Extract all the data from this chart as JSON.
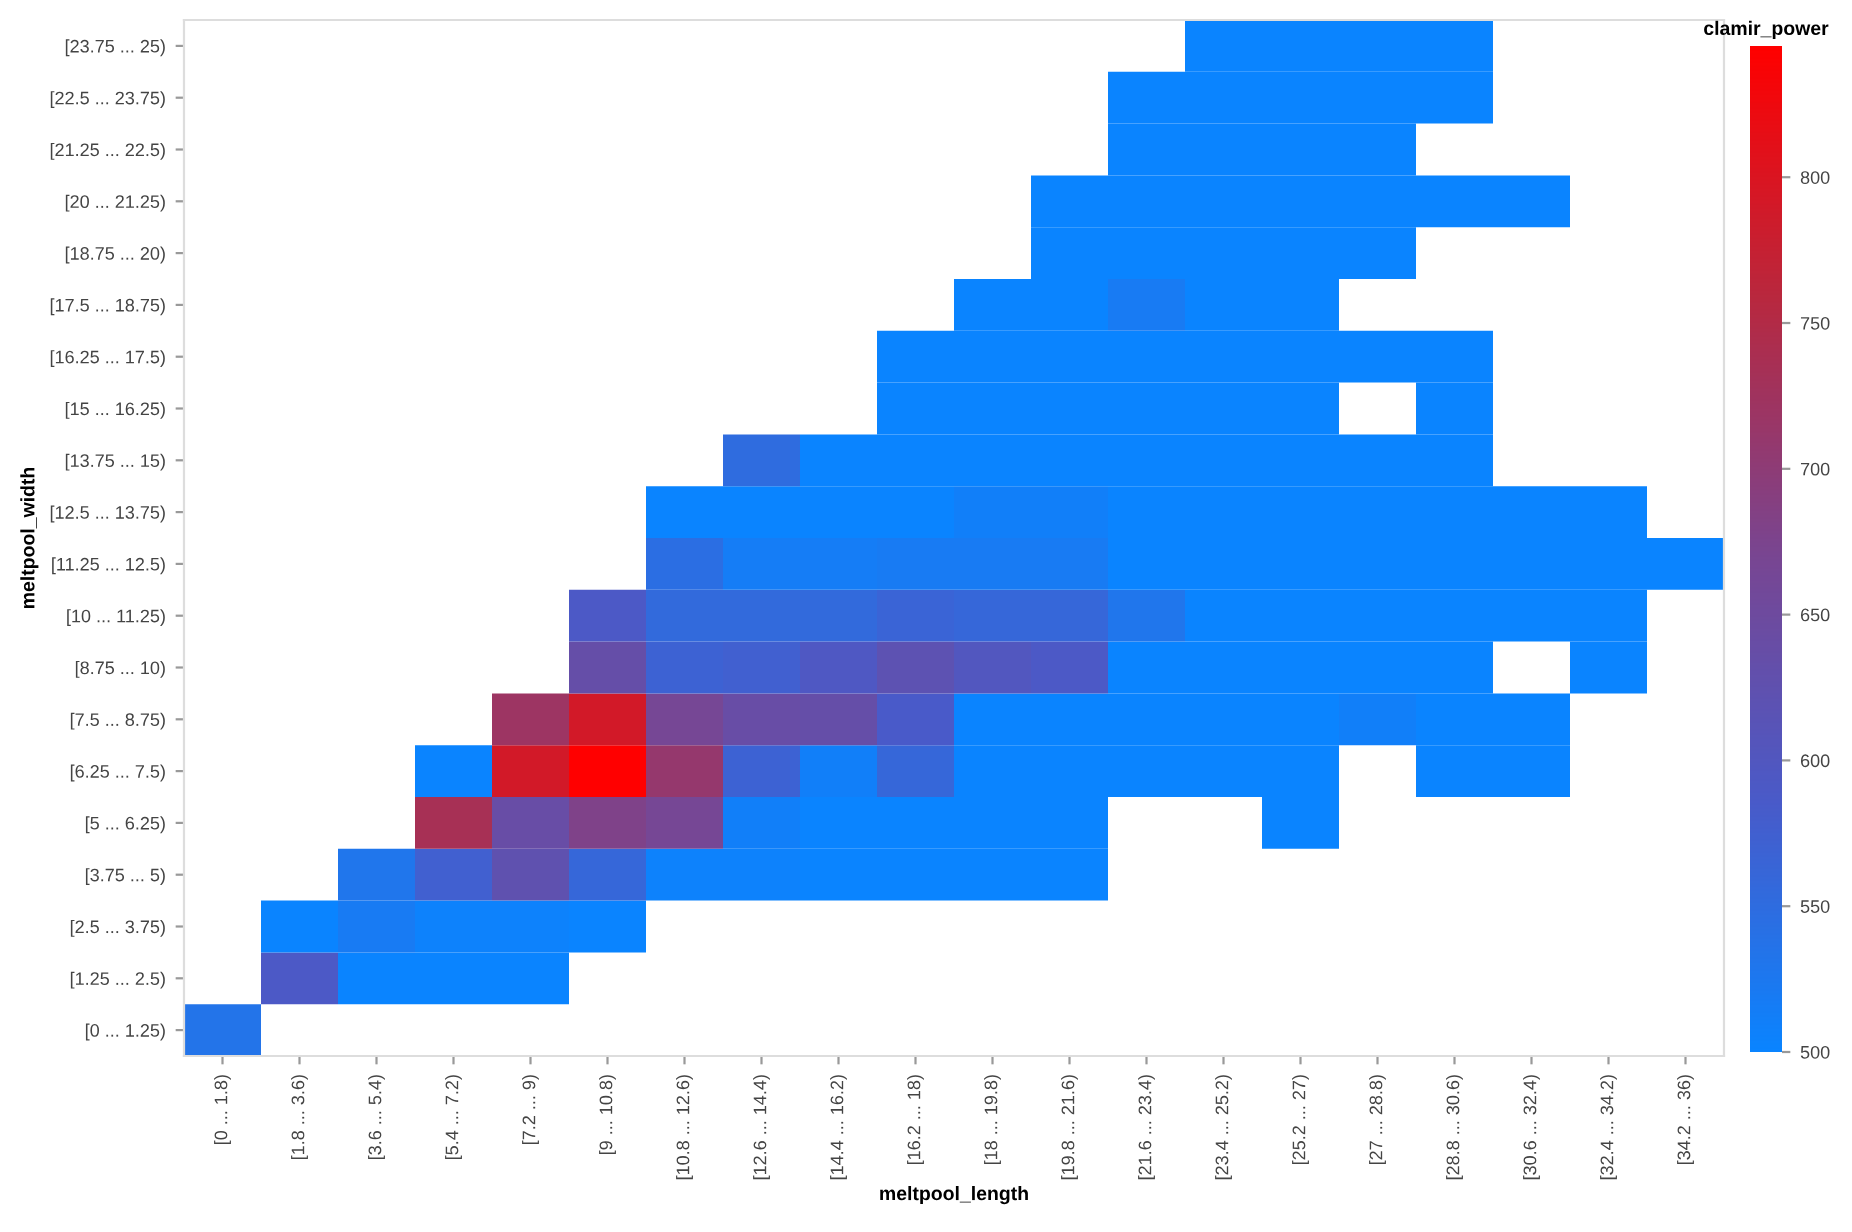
{
  "chart_data": {
    "type": "heatmap",
    "xlabel": "meltpool_length",
    "ylabel": "meltpool_width",
    "clabel": "clamir_power",
    "categories": [
      "[0 ... 1.8)",
      "[1.8 ... 3.6)",
      "[3.6 ... 5.4)",
      "[5.4 ... 7.2)",
      "[7.2 ... 9)",
      "[9 ... 10.8)",
      "[10.8 ... 12.6)",
      "[12.6 ... 14.4)",
      "[14.4 ... 16.2)",
      "[16.2 ... 18)",
      "[18 ... 19.8)",
      "[19.8 ... 21.6)",
      "[21.6 ... 23.4)",
      "[23.4 ... 25.2)",
      "[25.2 ... 27)",
      "[27 ... 28.8)",
      "[28.8 ... 30.6)",
      "[30.6 ... 32.4)",
      "[32.4 ... 34.2)",
      "[34.2 ... 36)"
    ],
    "y_categories": [
      "[23.75 ... 25)",
      "[22.5 ... 23.75)",
      "[21.25 ... 22.5)",
      "[20 ... 21.25)",
      "[18.75 ... 20)",
      "[17.5 ... 18.75)",
      "[16.25 ... 17.5)",
      "[15 ... 16.25)",
      "[13.75 ... 15)",
      "[12.5 ... 13.75)",
      "[11.25 ... 12.5)",
      "[10 ... 11.25)",
      "[8.75 ... 10)",
      "[7.5 ... 8.75)",
      "[6.25 ... 7.5)",
      "[5 ... 6.25)",
      "[3.75 ... 5)",
      "[2.5 ... 3.75)",
      "[1.25 ... 2.5)",
      "[0 ... 1.25)"
    ],
    "cells": [
      [
        null,
        null,
        null,
        null,
        null,
        null,
        null,
        null,
        null,
        null,
        null,
        null,
        null,
        500,
        500,
        500,
        500,
        null,
        null,
        null
      ],
      [
        null,
        null,
        null,
        null,
        null,
        null,
        null,
        null,
        null,
        null,
        null,
        null,
        500,
        500,
        500,
        500,
        500,
        null,
        null,
        null
      ],
      [
        null,
        null,
        null,
        null,
        null,
        null,
        null,
        null,
        null,
        null,
        null,
        null,
        500,
        500,
        500,
        500,
        null,
        null,
        null,
        null
      ],
      [
        null,
        null,
        null,
        null,
        null,
        null,
        null,
        null,
        null,
        null,
        null,
        500,
        500,
        500,
        500,
        500,
        500,
        500,
        null,
        null
      ],
      [
        null,
        null,
        null,
        null,
        null,
        null,
        null,
        null,
        null,
        null,
        null,
        500,
        500,
        500,
        500,
        500,
        null,
        null,
        null,
        null
      ],
      [
        null,
        null,
        null,
        null,
        null,
        null,
        null,
        null,
        null,
        null,
        500,
        500,
        520,
        500,
        500,
        null,
        null,
        null,
        null,
        null
      ],
      [
        null,
        null,
        null,
        null,
        null,
        null,
        null,
        null,
        null,
        500,
        500,
        500,
        500,
        500,
        500,
        500,
        500,
        null,
        null,
        null
      ],
      [
        null,
        null,
        null,
        null,
        null,
        null,
        null,
        null,
        null,
        500,
        500,
        500,
        500,
        500,
        500,
        null,
        500,
        null,
        null,
        null
      ],
      [
        null,
        null,
        null,
        null,
        null,
        null,
        null,
        550,
        500,
        500,
        500,
        500,
        500,
        500,
        500,
        500,
        500,
        null,
        null,
        null
      ],
      [
        null,
        null,
        null,
        null,
        null,
        null,
        500,
        500,
        500,
        500,
        510,
        510,
        500,
        500,
        500,
        500,
        500,
        500,
        500,
        null
      ],
      [
        null,
        null,
        null,
        null,
        null,
        null,
        545,
        515,
        515,
        520,
        520,
        520,
        500,
        500,
        500,
        500,
        500,
        500,
        500,
        500
      ],
      [
        null,
        null,
        null,
        null,
        null,
        590,
        555,
        555,
        555,
        565,
        560,
        560,
        530,
        500,
        500,
        500,
        500,
        500,
        500,
        null
      ],
      [
        null,
        null,
        null,
        null,
        null,
        635,
        570,
        575,
        595,
        620,
        600,
        590,
        500,
        500,
        500,
        500,
        500,
        null,
        500,
        null
      ],
      [
        null,
        null,
        null,
        null,
        720,
        790,
        665,
        640,
        635,
        585,
        500,
        500,
        500,
        500,
        500,
        510,
        500,
        500,
        null,
        null
      ],
      [
        null,
        null,
        null,
        500,
        790,
        845,
        710,
        570,
        510,
        560,
        500,
        500,
        500,
        500,
        500,
        null,
        500,
        500,
        null,
        null
      ],
      [
        null,
        null,
        null,
        735,
        640,
        680,
        665,
        510,
        500,
        500,
        500,
        500,
        null,
        null,
        500,
        null,
        null,
        null,
        null,
        null
      ],
      [
        null,
        null,
        530,
        575,
        625,
        560,
        505,
        505,
        500,
        500,
        500,
        500,
        null,
        null,
        null,
        null,
        null,
        null,
        null,
        null
      ],
      [
        null,
        500,
        520,
        505,
        505,
        500,
        null,
        null,
        null,
        null,
        null,
        null,
        null,
        null,
        null,
        null,
        null,
        null,
        null,
        null
      ],
      [
        null,
        590,
        500,
        500,
        500,
        null,
        null,
        null,
        null,
        null,
        null,
        null,
        null,
        null,
        null,
        null,
        null,
        null,
        null,
        null
      ],
      [
        535,
        null,
        null,
        null,
        null,
        null,
        null,
        null,
        null,
        null,
        null,
        null,
        null,
        null,
        null,
        null,
        null,
        null,
        null,
        null
      ]
    ],
    "clim": [
      500,
      845
    ],
    "cticks": [
      500,
      550,
      600,
      650,
      700,
      750,
      800
    ],
    "grid": false
  }
}
